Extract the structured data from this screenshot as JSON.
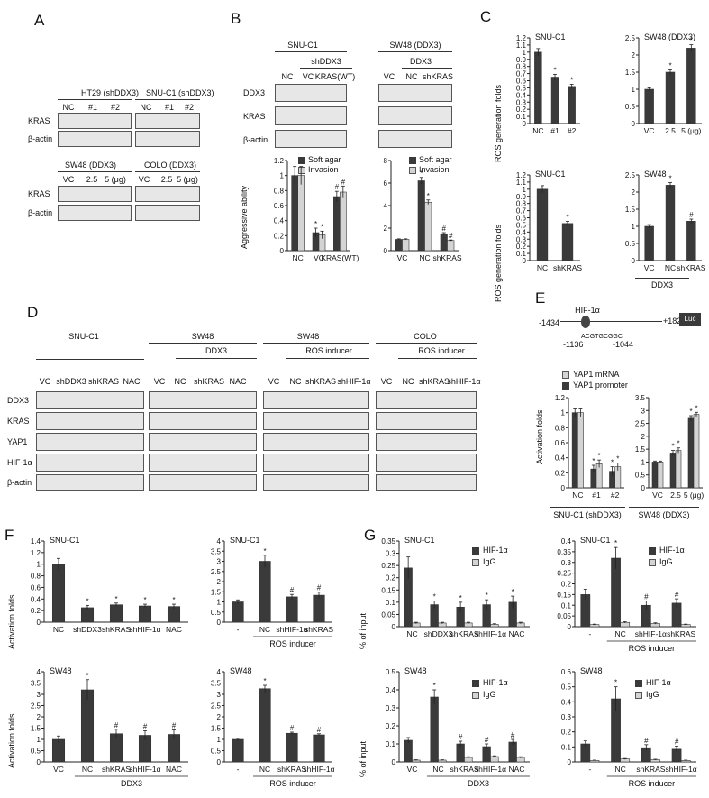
{
  "panels": {
    "A": "A",
    "B": "B",
    "C": "C",
    "D": "D",
    "E": "E",
    "F": "F",
    "G": "G"
  },
  "panelA": {
    "ht29": "HT29 (shDDX3)",
    "snuc1": "SNU-C1 (shDDX3)",
    "sw48": "SW48 (DDX3)",
    "colo": "COLO (DDX3)",
    "lanes_sh": [
      "NC",
      "#1",
      "#2"
    ],
    "lanes_dose": [
      "VC",
      "2.5",
      "5 (μg)"
    ],
    "kras": "KRAS",
    "actin": "β-actin"
  },
  "panelB": {
    "snuc1": "SNU-C1",
    "sw48": "SW48 (DDX3)",
    "shddx3": "shDDX3",
    "ddx3": "DDX3",
    "lanes_left": [
      "NC",
      "VC",
      "KRAS(WT)"
    ],
    "lanes_right": [
      "VC",
      "NC",
      "shKRAS"
    ],
    "rows": [
      "DDX3",
      "KRAS",
      "β-actin"
    ],
    "legend": [
      "Soft agar",
      "Invasion"
    ],
    "ylabel": "Aggressive ability"
  },
  "panelC": {
    "ylabel": "ROS generation folds",
    "top_right_title": "SW48 (DDX3)",
    "ddx3": "DDX3"
  },
  "panelD": {
    "groups": [
      "SNU-C1",
      "SW48",
      "SW48",
      "COLO"
    ],
    "sub": [
      "DDX3",
      "ROS inducer",
      "ROS inducer"
    ],
    "lanes1": [
      "VC",
      "shDDX3",
      "shKRAS",
      "NAC"
    ],
    "lanes2": [
      "VC",
      "NC",
      "shKRAS",
      "NAC"
    ],
    "lanes3": [
      "VC",
      "NC",
      "shKRAS",
      "shHIF-1α"
    ],
    "lanes4": [
      "VC",
      "NC",
      "shKRAS",
      "shHIF-1α"
    ],
    "rows": [
      "DDX3",
      "KRAS",
      "YAP1",
      "HIF-1α",
      "β-actin"
    ]
  },
  "panelE": {
    "hif": "HIF-1α",
    "pos_left": "-1434",
    "pos_right": "+182",
    "luc": "Luc",
    "site_left": "-1136",
    "site_seq": "ACGTGCGGC",
    "site_right": "-1044",
    "legend": [
      "YAP1 mRNA",
      "YAP1 promoter"
    ],
    "ylabel": "Activation folds",
    "group_left": "SNU-C1 (shDDX3)",
    "group_right": "SW48 (DDX3)"
  },
  "panelF": {
    "ylabel": "Activation folds",
    "ddx3": "DDX3",
    "ros": "ROS inducer"
  },
  "panelG": {
    "ylabel": "% of input",
    "legend": [
      "HIF-1α",
      "IgG"
    ],
    "ddx3": "DDX3",
    "ros": "ROS inducer"
  },
  "chart_data": [
    {
      "id": "B-left",
      "type": "bar",
      "title": "SNU-C1",
      "categories": [
        "NC",
        "VC",
        "KRAS(WT)"
      ],
      "series": [
        {
          "name": "Soft agar",
          "values": [
            1.0,
            0.24,
            0.72
          ],
          "errors": [
            0.12,
            0.06,
            0.07
          ],
          "marks": [
            "",
            "*",
            "#"
          ]
        },
        {
          "name": "Invasion",
          "values": [
            1.0,
            0.21,
            0.78
          ],
          "errors": [
            0.12,
            0.05,
            0.08
          ],
          "marks": [
            "",
            "*",
            "#"
          ]
        }
      ],
      "ylim": [
        0,
        1.2
      ],
      "ticks": [
        "0",
        "0.2",
        "0.4",
        "0.6",
        "0.8",
        "1",
        "1.2"
      ],
      "ylabel": "Aggressive ability",
      "xlabel": ""
    },
    {
      "id": "B-right",
      "type": "bar",
      "title": "SW48 (DDX3)",
      "categories": [
        "VC",
        "NC",
        "shKRAS"
      ],
      "series": [
        {
          "name": "Soft agar",
          "values": [
            1.0,
            6.2,
            1.5
          ],
          "errors": [
            0.05,
            0.3,
            0.1
          ],
          "marks": [
            "",
            "*",
            "#"
          ]
        },
        {
          "name": "Invasion",
          "values": [
            1.0,
            4.3,
            0.9
          ],
          "errors": [
            0.05,
            0.2,
            0.05
          ],
          "marks": [
            "",
            "*",
            "#"
          ]
        }
      ],
      "ylim": [
        0,
        8
      ],
      "ticks": [
        "0",
        "2",
        "4",
        "6",
        "8"
      ],
      "ylabel": "",
      "xlabel": ""
    },
    {
      "id": "C-1",
      "type": "bar",
      "title": "SNU-C1",
      "categories": [
        "NC",
        "#1",
        "#2"
      ],
      "series": [
        {
          "name": "ROS",
          "values": [
            1.0,
            0.65,
            0.52
          ],
          "errors": [
            0.05,
            0.04,
            0.03
          ],
          "marks": [
            "",
            "*",
            "*"
          ]
        }
      ],
      "ylim": [
        0,
        1.2
      ],
      "ticks": [
        "0",
        "0.1",
        "0.2",
        "0.3",
        "0.4",
        "0.5",
        "0.6",
        "0.7",
        "0.8",
        "0.9",
        "1",
        "1.1",
        "1.2"
      ],
      "ylabel": "ROS generation folds",
      "xlabel": ""
    },
    {
      "id": "C-2",
      "type": "bar",
      "title": "SW48 (DDX3)",
      "categories": [
        "VC",
        "2.5",
        "5 (μg)"
      ],
      "series": [
        {
          "name": "ROS",
          "values": [
            1.0,
            1.5,
            2.2
          ],
          "errors": [
            0.04,
            0.07,
            0.1
          ],
          "marks": [
            "",
            "*",
            "*"
          ]
        }
      ],
      "ylim": [
        0,
        2.5
      ],
      "ticks": [
        "0",
        "0.5",
        "1",
        "1.5",
        "2",
        "2.5"
      ],
      "ylabel": "",
      "xlabel": ""
    },
    {
      "id": "C-3",
      "type": "bar",
      "title": "SNU-C1",
      "categories": [
        "NC",
        "shKRAS"
      ],
      "series": [
        {
          "name": "ROS",
          "values": [
            1.0,
            0.52
          ],
          "errors": [
            0.05,
            0.03
          ],
          "marks": [
            "",
            "*"
          ]
        }
      ],
      "ylim": [
        0,
        1.2
      ],
      "ticks": [
        "0",
        "0.1",
        "0.2",
        "0.3",
        "0.4",
        "0.5",
        "0.6",
        "0.7",
        "0.8",
        "0.9",
        "1",
        "1.1",
        "1.2"
      ],
      "ylabel": "ROS generation folds",
      "xlabel": ""
    },
    {
      "id": "C-4",
      "type": "bar",
      "title": "SW48",
      "categories": [
        "VC",
        "NC",
        "shKRAS"
      ],
      "series": [
        {
          "name": "ROS",
          "values": [
            1.0,
            2.2,
            1.15
          ],
          "errors": [
            0.05,
            0.08,
            0.06
          ],
          "marks": [
            "",
            "*",
            "#"
          ]
        }
      ],
      "ylim": [
        0,
        2.5
      ],
      "ticks": [
        "0",
        "0.5",
        "1",
        "1.5",
        "2",
        "2.5"
      ],
      "ylabel": "",
      "xlabel": ""
    },
    {
      "id": "E-1",
      "type": "bar",
      "title": "",
      "categories": [
        "NC",
        "#1",
        "#2"
      ],
      "series": [
        {
          "name": "YAP1 mRNA",
          "values": [
            1.0,
            0.25,
            0.22
          ],
          "errors": [
            0.05,
            0.05,
            0.06
          ],
          "marks": [
            "",
            "*",
            "*"
          ]
        },
        {
          "name": "YAP1 promoter",
          "values": [
            1.0,
            0.32,
            0.28
          ],
          "errors": [
            0.05,
            0.05,
            0.05
          ],
          "marks": [
            "",
            "*",
            "*"
          ]
        }
      ],
      "ylim": [
        0,
        1.2
      ],
      "ticks": [
        "0",
        "0.2",
        "0.4",
        "0.6",
        "0.8",
        "1",
        "1.2"
      ],
      "ylabel": "Activation folds",
      "xlabel": ""
    },
    {
      "id": "E-2",
      "type": "bar",
      "title": "",
      "categories": [
        "VC",
        "2.5",
        "5 (μg)"
      ],
      "series": [
        {
          "name": "YAP1 mRNA",
          "values": [
            1.0,
            1.35,
            2.7
          ],
          "errors": [
            0.04,
            0.1,
            0.1
          ],
          "marks": [
            "",
            "*",
            "*"
          ]
        },
        {
          "name": "YAP1 promoter",
          "values": [
            1.0,
            1.45,
            2.85
          ],
          "errors": [
            0.04,
            0.1,
            0.08
          ],
          "marks": [
            "",
            "*",
            "*"
          ]
        }
      ],
      "ylim": [
        0,
        3.5
      ],
      "ticks": [
        "0",
        "0.5",
        "1",
        "1.5",
        "2",
        "2.5",
        "3",
        "3.5"
      ],
      "ylabel": "",
      "xlabel": ""
    },
    {
      "id": "F-1",
      "type": "bar",
      "title": "SNU-C1",
      "categories": [
        "NC",
        "shDDX3",
        "shKRAS",
        "shHIF-1α",
        "NAC"
      ],
      "series": [
        {
          "name": "Activation",
          "values": [
            1.0,
            0.25,
            0.3,
            0.28,
            0.27
          ],
          "errors": [
            0.1,
            0.04,
            0.03,
            0.03,
            0.04
          ],
          "marks": [
            "",
            "*",
            "*",
            "*",
            "*"
          ]
        }
      ],
      "ylim": [
        0,
        1.4
      ],
      "ticks": [
        "0",
        "0.2",
        "0.4",
        "0.6",
        "0.8",
        "1",
        "1.2",
        "1.4"
      ],
      "ylabel": "Activation folds",
      "xlabel": ""
    },
    {
      "id": "F-2",
      "type": "bar",
      "title": "SNU-C1",
      "categories": [
        "-",
        "NC",
        "shHIF-1α",
        "shKRAS"
      ],
      "series": [
        {
          "name": "Activation",
          "values": [
            1.0,
            3.0,
            1.25,
            1.33
          ],
          "errors": [
            0.1,
            0.3,
            0.12,
            0.15
          ],
          "marks": [
            "",
            "*",
            "#",
            "#"
          ]
        }
      ],
      "ylim": [
        0,
        4
      ],
      "ticks": [
        "0",
        "0.5",
        "1",
        "1.5",
        "2",
        "2.5",
        "3",
        "3.5",
        "4"
      ],
      "ylabel": "",
      "xlabel": "ROS inducer"
    },
    {
      "id": "F-3",
      "type": "bar",
      "title": "SW48",
      "categories": [
        "VC",
        "NC",
        "shKRAS",
        "shHIF-1α",
        "NAC"
      ],
      "series": [
        {
          "name": "Activation",
          "values": [
            1.0,
            3.2,
            1.25,
            1.18,
            1.22
          ],
          "errors": [
            0.15,
            0.45,
            0.2,
            0.2,
            0.2
          ],
          "marks": [
            "",
            "*",
            "#",
            "#",
            "#"
          ]
        }
      ],
      "ylim": [
        0,
        4
      ],
      "ticks": [
        "0",
        "0.5",
        "1",
        "1.5",
        "2",
        "2.5",
        "3",
        "3.5",
        "4"
      ],
      "ylabel": "Activation folds",
      "xlabel": "DDX3"
    },
    {
      "id": "F-4",
      "type": "bar",
      "title": "SW48",
      "categories": [
        "-",
        "NC",
        "shKRAS",
        "shHIF-1α"
      ],
      "series": [
        {
          "name": "Activation",
          "values": [
            1.0,
            3.25,
            1.27,
            1.2
          ],
          "errors": [
            0.05,
            0.15,
            0.05,
            0.05
          ],
          "marks": [
            "",
            "*",
            "#",
            "#"
          ]
        }
      ],
      "ylim": [
        0,
        4
      ],
      "ticks": [
        "0",
        "0.5",
        "1",
        "1.5",
        "2",
        "2.5",
        "3",
        "3.5",
        "4"
      ],
      "ylabel": "",
      "xlabel": "ROS inducer"
    },
    {
      "id": "G-1",
      "type": "bar",
      "title": "SNU-C1",
      "categories": [
        "NC",
        "shDDX3",
        "shKRAS",
        "shHIF-1α",
        "NAC"
      ],
      "series": [
        {
          "name": "HIF-1α",
          "values": [
            0.24,
            0.09,
            0.08,
            0.09,
            0.1
          ],
          "errors": [
            0.045,
            0.015,
            0.02,
            0.02,
            0.025
          ],
          "marks": [
            "",
            "*",
            "*",
            "*",
            "*"
          ]
        },
        {
          "name": "IgG",
          "values": [
            0.015,
            0.015,
            0.015,
            0.01,
            0.015
          ],
          "errors": [
            0.003,
            0.003,
            0.003,
            0.002,
            0.003
          ],
          "marks": [
            "",
            "",
            "",
            "",
            ""
          ]
        }
      ],
      "ylim": [
        0,
        0.35
      ],
      "ticks": [
        "0",
        "0.05",
        "0.1",
        "0.15",
        "0.2",
        "0.25",
        "0.3",
        "0.35"
      ],
      "ylabel": "% of input",
      "xlabel": ""
    },
    {
      "id": "G-2",
      "type": "bar",
      "title": "SNU-C1",
      "categories": [
        "-",
        "NC",
        "shHIF-1α",
        "shKRAS"
      ],
      "series": [
        {
          "name": "HIF-1α",
          "values": [
            0.15,
            0.32,
            0.1,
            0.11
          ],
          "errors": [
            0.025,
            0.05,
            0.02,
            0.02
          ],
          "marks": [
            "",
            "*",
            "#",
            "#"
          ]
        },
        {
          "name": "IgG",
          "values": [
            0.01,
            0.02,
            0.015,
            0.01
          ],
          "errors": [
            0.002,
            0.003,
            0.003,
            0.002
          ],
          "marks": [
            "",
            "",
            "",
            ""
          ]
        }
      ],
      "ylim": [
        0,
        0.4
      ],
      "ticks": [
        "0",
        "0.05",
        "0.1",
        "0.15",
        "0.2",
        "0.25",
        "0.3",
        "0.35",
        "0.4"
      ],
      "ylabel": "",
      "xlabel": "ROS inducer"
    },
    {
      "id": "G-3",
      "type": "bar",
      "title": "SW48",
      "categories": [
        "VC",
        "NC",
        "shKRAS",
        "shHIF-1α",
        "NAC"
      ],
      "series": [
        {
          "name": "HIF-1α",
          "values": [
            0.12,
            0.36,
            0.1,
            0.085,
            0.11
          ],
          "errors": [
            0.015,
            0.04,
            0.015,
            0.015,
            0.015
          ],
          "marks": [
            "",
            "*",
            "#",
            "#",
            "#"
          ]
        },
        {
          "name": "IgG",
          "values": [
            0.01,
            0.01,
            0.025,
            0.03,
            0.025
          ],
          "errors": [
            0.002,
            0.002,
            0.004,
            0.004,
            0.004
          ],
          "marks": [
            "",
            "",
            "",
            "",
            ""
          ]
        }
      ],
      "ylim": [
        0,
        0.5
      ],
      "ticks": [
        "0",
        "0.1",
        "0.2",
        "0.3",
        "0.4",
        "0.5"
      ],
      "ylabel": "% of input",
      "xlabel": "DDX3"
    },
    {
      "id": "G-4",
      "type": "bar",
      "title": "SW48",
      "categories": [
        "-",
        "NC",
        "shKRAS",
        "shHIF-1α"
      ],
      "series": [
        {
          "name": "HIF-1α",
          "values": [
            0.12,
            0.42,
            0.095,
            0.085
          ],
          "errors": [
            0.02,
            0.08,
            0.02,
            0.02
          ],
          "marks": [
            "",
            "*",
            "#",
            "#"
          ]
        },
        {
          "name": "IgG",
          "values": [
            0.01,
            0.02,
            0.015,
            0.01
          ],
          "errors": [
            0.002,
            0.003,
            0.003,
            0.002
          ],
          "marks": [
            "",
            "",
            "",
            ""
          ]
        }
      ],
      "ylim": [
        0,
        0.6
      ],
      "ticks": [
        "0",
        "0.1",
        "0.2",
        "0.3",
        "0.4",
        "0.5",
        "0.6"
      ],
      "ylabel": "",
      "xlabel": "ROS inducer"
    }
  ]
}
